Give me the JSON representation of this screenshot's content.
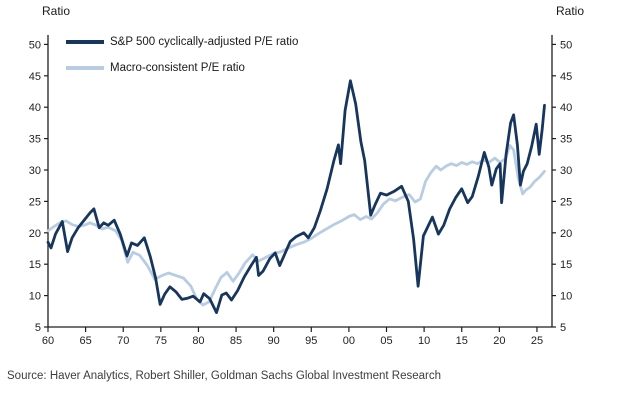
{
  "chart_data": {
    "type": "line",
    "title": "",
    "ylabel_left": "Ratio",
    "ylabel_right": "Ratio",
    "ylim": [
      5,
      50
    ],
    "y_tick_step": 5,
    "y_ticks": [
      5,
      10,
      15,
      20,
      25,
      30,
      35,
      40,
      45,
      50
    ],
    "xlim": [
      1960,
      2027
    ],
    "x_tick_years": [
      1960,
      1965,
      1970,
      1975,
      1980,
      1985,
      1990,
      1995,
      2000,
      2005,
      2010,
      2015,
      2020,
      2025
    ],
    "x_tick_labels": [
      "60",
      "65",
      "70",
      "75",
      "80",
      "85",
      "90",
      "95",
      "00",
      "05",
      "10",
      "15",
      "20",
      "25"
    ],
    "grid": false,
    "legend_position": "top-left-inside",
    "series": [
      {
        "name": "Macro-consistent P/E ratio",
        "color": "#B8CCE4",
        "width": 2.8,
        "points": [
          [
            1960.0,
            20.3
          ],
          [
            1960.8,
            21.0
          ],
          [
            1961.6,
            21.6
          ],
          [
            1962.4,
            21.9
          ],
          [
            1963.2,
            21.3
          ],
          [
            1964.0,
            21.0
          ],
          [
            1964.8,
            21.2
          ],
          [
            1965.6,
            21.6
          ],
          [
            1966.4,
            21.2
          ],
          [
            1967.2,
            20.6
          ],
          [
            1968.0,
            20.9
          ],
          [
            1969.0,
            20.3
          ],
          [
            1969.8,
            18.8
          ],
          [
            1970.6,
            15.3
          ],
          [
            1971.3,
            16.9
          ],
          [
            1972.2,
            16.4
          ],
          [
            1973.2,
            14.8
          ],
          [
            1974.2,
            12.6
          ],
          [
            1975.0,
            13.1
          ],
          [
            1976.0,
            13.6
          ],
          [
            1977.0,
            13.2
          ],
          [
            1978.0,
            12.8
          ],
          [
            1979.0,
            11.5
          ],
          [
            1979.8,
            9.4
          ],
          [
            1980.6,
            8.5
          ],
          [
            1981.4,
            9.0
          ],
          [
            1982.2,
            11.0
          ],
          [
            1983.0,
            12.9
          ],
          [
            1983.8,
            13.7
          ],
          [
            1984.6,
            12.3
          ],
          [
            1985.4,
            13.6
          ],
          [
            1986.2,
            15.2
          ],
          [
            1987.2,
            16.5
          ],
          [
            1988.0,
            15.5
          ],
          [
            1989.0,
            16.1
          ],
          [
            1990.0,
            16.7
          ],
          [
            1991.0,
            17.0
          ],
          [
            1992.0,
            17.6
          ],
          [
            1993.0,
            18.1
          ],
          [
            1994.0,
            18.5
          ],
          [
            1995.0,
            19.1
          ],
          [
            1996.0,
            19.9
          ],
          [
            1997.0,
            20.6
          ],
          [
            1998.0,
            21.3
          ],
          [
            1999.0,
            21.9
          ],
          [
            2000.0,
            22.6
          ],
          [
            2000.7,
            22.9
          ],
          [
            2001.5,
            22.1
          ],
          [
            2002.3,
            22.6
          ],
          [
            2003.0,
            22.2
          ],
          [
            2003.8,
            23.2
          ],
          [
            2004.6,
            24.6
          ],
          [
            2005.4,
            25.4
          ],
          [
            2006.2,
            25.1
          ],
          [
            2007.0,
            25.6
          ],
          [
            2008.0,
            26.1
          ],
          [
            2008.8,
            24.9
          ],
          [
            2009.5,
            25.4
          ],
          [
            2010.2,
            28.2
          ],
          [
            2010.9,
            29.6
          ],
          [
            2011.6,
            30.6
          ],
          [
            2012.2,
            30.0
          ],
          [
            2012.9,
            30.6
          ],
          [
            2013.6,
            31.0
          ],
          [
            2014.3,
            30.7
          ],
          [
            2015.0,
            31.2
          ],
          [
            2015.7,
            30.9
          ],
          [
            2016.4,
            31.3
          ],
          [
            2017.1,
            31.0
          ],
          [
            2017.9,
            31.6
          ],
          [
            2018.6,
            31.2
          ],
          [
            2019.4,
            31.9
          ],
          [
            2020.1,
            31.2
          ],
          [
            2020.8,
            31.8
          ],
          [
            2021.4,
            33.9
          ],
          [
            2021.9,
            33.2
          ],
          [
            2022.5,
            28.8
          ],
          [
            2023.1,
            26.2
          ],
          [
            2023.5,
            26.8
          ],
          [
            2024.1,
            27.3
          ],
          [
            2024.7,
            28.2
          ],
          [
            2025.3,
            28.8
          ],
          [
            2026.0,
            29.8
          ]
        ]
      },
      {
        "name": "S&P 500 cyclically-adjusted P/E ratio",
        "color": "#17365D",
        "width": 2.8,
        "points": [
          [
            1960.0,
            18.5
          ],
          [
            1960.4,
            17.6
          ],
          [
            1961.0,
            19.8
          ],
          [
            1961.9,
            21.8
          ],
          [
            1962.6,
            17.0
          ],
          [
            1963.2,
            19.2
          ],
          [
            1964.0,
            20.8
          ],
          [
            1964.8,
            22.0
          ],
          [
            1965.6,
            23.2
          ],
          [
            1966.1,
            23.8
          ],
          [
            1966.8,
            20.8
          ],
          [
            1967.4,
            21.6
          ],
          [
            1968.0,
            21.2
          ],
          [
            1968.8,
            22.0
          ],
          [
            1969.6,
            19.8
          ],
          [
            1970.5,
            16.3
          ],
          [
            1971.1,
            18.4
          ],
          [
            1971.9,
            18.0
          ],
          [
            1972.8,
            19.2
          ],
          [
            1973.6,
            16.2
          ],
          [
            1974.3,
            12.8
          ],
          [
            1974.9,
            8.6
          ],
          [
            1975.5,
            10.2
          ],
          [
            1976.2,
            11.4
          ],
          [
            1977.0,
            10.6
          ],
          [
            1977.8,
            9.4
          ],
          [
            1978.6,
            9.6
          ],
          [
            1979.3,
            9.9
          ],
          [
            1980.2,
            9.0
          ],
          [
            1980.7,
            10.3
          ],
          [
            1981.5,
            9.5
          ],
          [
            1982.4,
            7.3
          ],
          [
            1983.1,
            10.1
          ],
          [
            1983.7,
            10.4
          ],
          [
            1984.4,
            9.3
          ],
          [
            1985.2,
            10.8
          ],
          [
            1986.1,
            13.0
          ],
          [
            1987.0,
            14.8
          ],
          [
            1987.7,
            16.1
          ],
          [
            1988.0,
            13.2
          ],
          [
            1988.6,
            13.9
          ],
          [
            1989.5,
            15.9
          ],
          [
            1990.2,
            16.8
          ],
          [
            1990.8,
            14.8
          ],
          [
            1991.5,
            16.7
          ],
          [
            1992.2,
            18.6
          ],
          [
            1993.0,
            19.4
          ],
          [
            1994.0,
            20.0
          ],
          [
            1994.6,
            19.2
          ],
          [
            1995.4,
            20.8
          ],
          [
            1996.2,
            23.5
          ],
          [
            1997.1,
            27.0
          ],
          [
            1998.0,
            31.5
          ],
          [
            1998.6,
            34.0
          ],
          [
            1998.9,
            31.0
          ],
          [
            1999.5,
            39.5
          ],
          [
            2000.2,
            44.2
          ],
          [
            2000.9,
            40.5
          ],
          [
            2001.6,
            34.5
          ],
          [
            2002.1,
            31.5
          ],
          [
            2002.9,
            22.8
          ],
          [
            2003.5,
            24.5
          ],
          [
            2004.2,
            26.3
          ],
          [
            2005.0,
            26.0
          ],
          [
            2006.0,
            26.6
          ],
          [
            2007.0,
            27.4
          ],
          [
            2007.9,
            25.0
          ],
          [
            2008.6,
            19.0
          ],
          [
            2009.2,
            11.5
          ],
          [
            2009.9,
            19.5
          ],
          [
            2010.5,
            21.0
          ],
          [
            2011.1,
            22.5
          ],
          [
            2011.9,
            19.8
          ],
          [
            2012.6,
            21.2
          ],
          [
            2013.4,
            23.8
          ],
          [
            2014.2,
            25.6
          ],
          [
            2015.0,
            27.0
          ],
          [
            2015.8,
            24.8
          ],
          [
            2016.4,
            25.8
          ],
          [
            2017.2,
            29.0
          ],
          [
            2018.0,
            32.8
          ],
          [
            2018.6,
            30.5
          ],
          [
            2019.0,
            27.6
          ],
          [
            2019.6,
            30.2
          ],
          [
            2020.1,
            31.0
          ],
          [
            2020.3,
            24.8
          ],
          [
            2020.9,
            32.5
          ],
          [
            2021.5,
            37.5
          ],
          [
            2021.9,
            38.8
          ],
          [
            2022.4,
            34.0
          ],
          [
            2022.8,
            27.6
          ],
          [
            2023.2,
            29.8
          ],
          [
            2023.7,
            31.0
          ],
          [
            2024.3,
            33.8
          ],
          [
            2024.9,
            37.3
          ],
          [
            2025.3,
            32.5
          ],
          [
            2025.7,
            36.5
          ],
          [
            2026.0,
            40.3
          ]
        ]
      }
    ],
    "source": "Source: Haver Analytics, Robert Shiller, Goldman Sachs Global Investment Research"
  },
  "legend": {
    "entries": [
      {
        "label": "S&P 500 cyclically-adjusted P/E ratio",
        "color": "#17365D"
      },
      {
        "label": "Macro-consistent P/E ratio",
        "color": "#B8CCE4"
      }
    ]
  },
  "colors": {
    "axis": "#1f1f1f",
    "tick_text": "#1f1f1f",
    "source_text": "#3d3d3d",
    "background": "#ffffff"
  }
}
